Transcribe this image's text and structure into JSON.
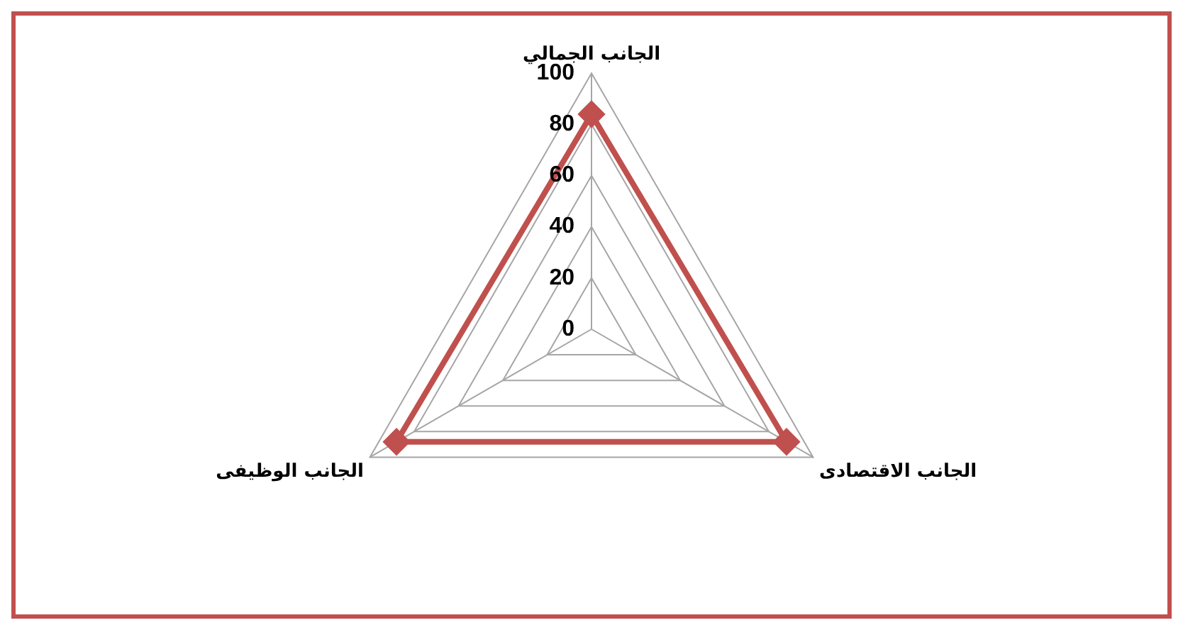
{
  "chart_data": {
    "type": "radar",
    "categories": [
      "الجانب الجمالي",
      "الجانب الاقتصادى",
      "الجانب الوظيفى"
    ],
    "series": [
      {
        "color": "#c0504d",
        "values": [
          84,
          88,
          88
        ]
      }
    ],
    "ylim": [
      0,
      100
    ],
    "yticks": [
      0,
      20,
      40,
      60,
      80,
      100
    ],
    "grid": true,
    "legend": false,
    "marker": "diamond",
    "line_style": "solid"
  }
}
